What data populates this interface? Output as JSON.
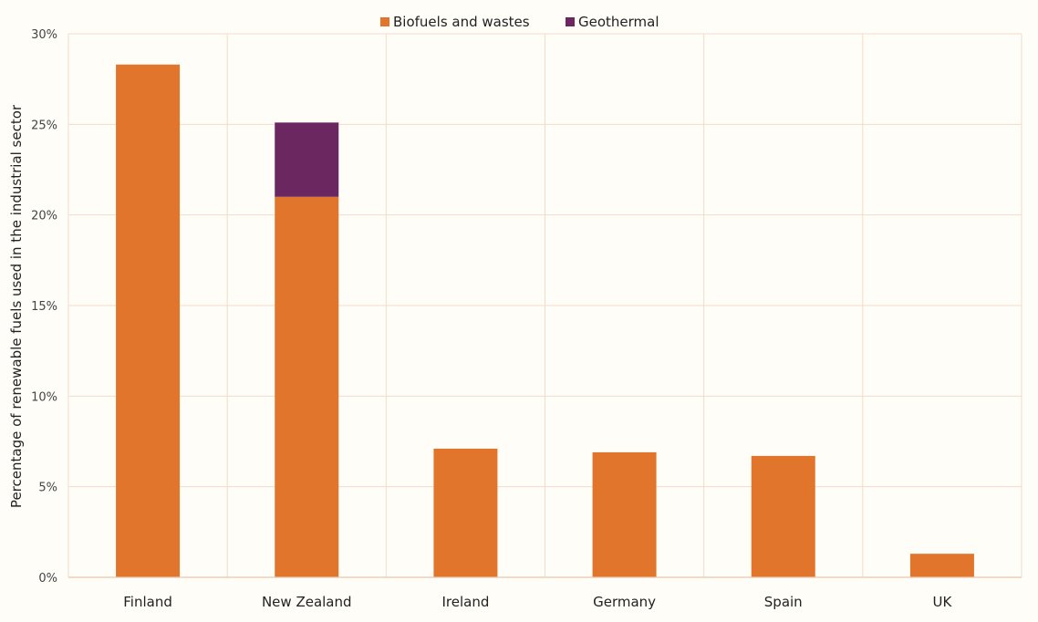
{
  "chart_data": {
    "type": "bar",
    "stacked": true,
    "title": "",
    "xlabel": "",
    "ylabel": "Percentage of renewable fuels used in the industrial sector",
    "ylim": [
      0,
      30
    ],
    "yticks": [
      "0%",
      "5%",
      "10%",
      "15%",
      "20%",
      "25%",
      "30%"
    ],
    "categories": [
      "Finland",
      "New Zealand",
      "Ireland",
      "Germany",
      "Spain",
      "UK"
    ],
    "series": [
      {
        "name": "Biofuels and wastes",
        "color": "#e2752c",
        "values": [
          28.3,
          21.0,
          7.1,
          6.9,
          6.7,
          1.3
        ]
      },
      {
        "name": "Geothermal",
        "color": "#6b2760",
        "values": [
          0,
          4.1,
          0,
          0,
          0,
          0
        ]
      }
    ],
    "grid": true,
    "legend": "top-center"
  }
}
